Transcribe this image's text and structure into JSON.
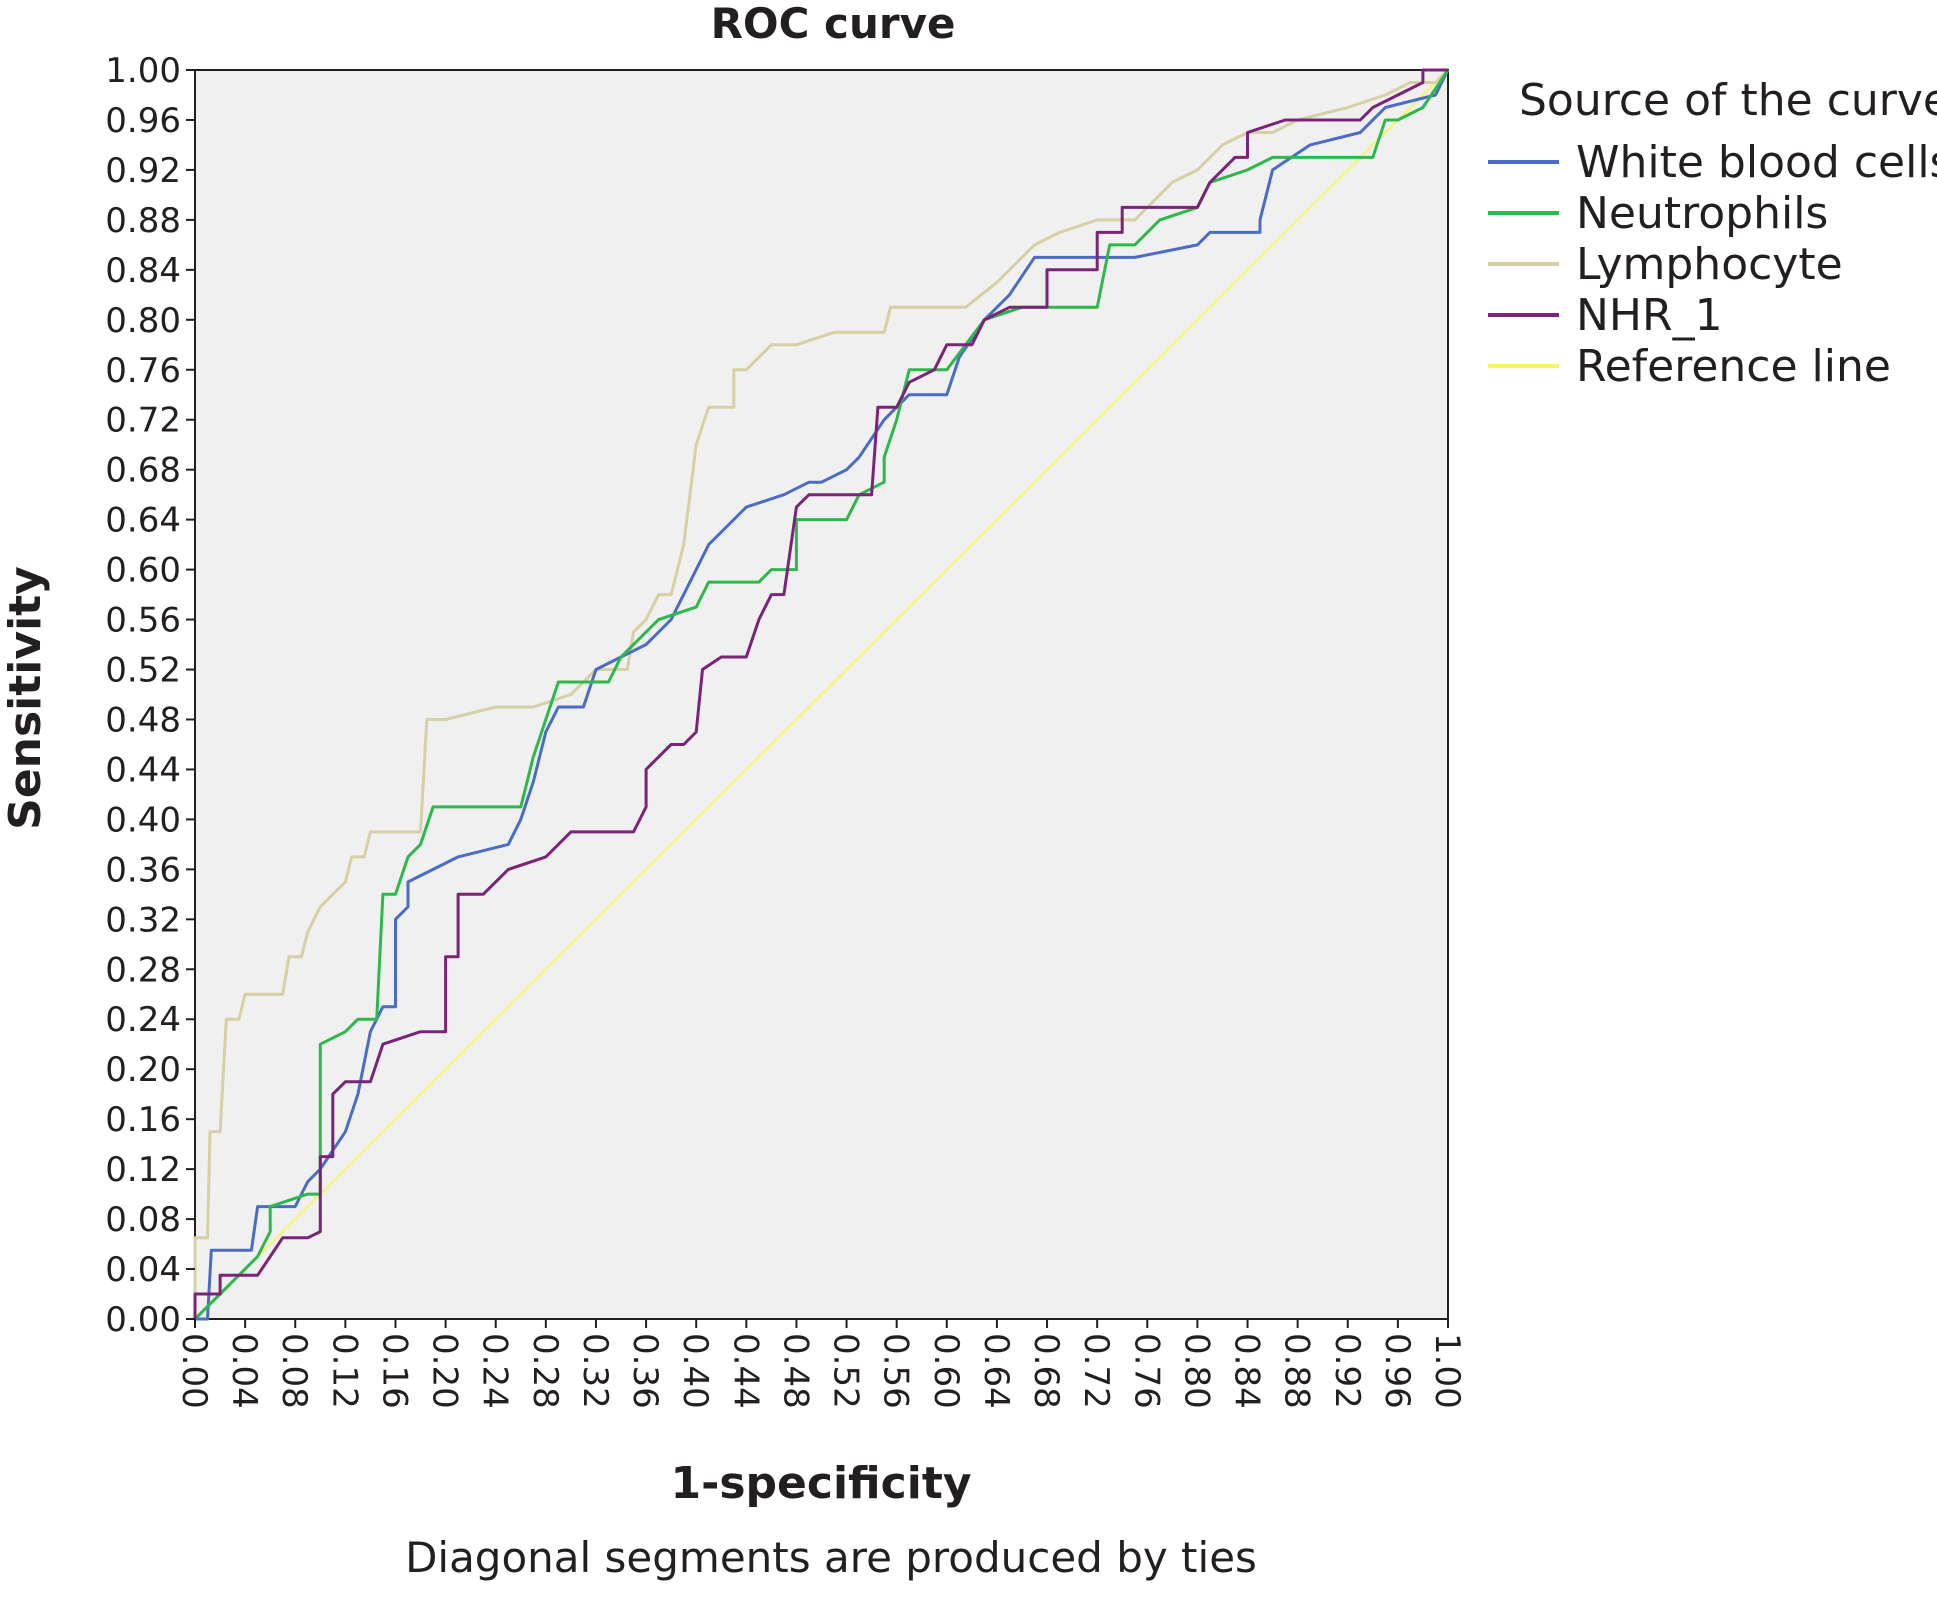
{
  "chart_data": {
    "type": "line",
    "title": "ROC curve",
    "xlabel": "1-specificity",
    "ylabel": "Sensitivity",
    "footnote": "Diagonal segments are produced by ties",
    "xlim": [
      0,
      1
    ],
    "ylim": [
      0,
      1
    ],
    "x_ticks": [
      "0.00",
      "0.04",
      "0.08",
      "0.12",
      "0.16",
      "0.20",
      "0.24",
      "0.28",
      "0.32",
      "0.36",
      "0.40",
      "0.44",
      "0.48",
      "0.52",
      "0.56",
      "0.60",
      "0.64",
      "0.68",
      "0.72",
      "0.76",
      "0.80",
      "0.84",
      "0.88",
      "0.92",
      "0.96",
      "1.00"
    ],
    "y_ticks": [
      "0.00",
      "0.04",
      "0.08",
      "0.12",
      "0.16",
      "0.20",
      "0.24",
      "0.28",
      "0.32",
      "0.36",
      "0.40",
      "0.44",
      "0.48",
      "0.52",
      "0.56",
      "0.60",
      "0.64",
      "0.68",
      "0.72",
      "0.76",
      "0.80",
      "0.84",
      "0.88",
      "0.92",
      "0.96",
      "1.00"
    ],
    "grid": false,
    "plot_background": "#f0f0f0",
    "legend": {
      "title": "Source of the curve",
      "placement": "right"
    },
    "series": [
      {
        "name": "White blood cells",
        "color": "#4a6cc4",
        "points": [
          [
            0,
            0
          ],
          [
            0.01,
            0
          ],
          [
            0.013,
            0.055
          ],
          [
            0.045,
            0.055
          ],
          [
            0.05,
            0.09
          ],
          [
            0.08,
            0.09
          ],
          [
            0.09,
            0.11
          ],
          [
            0.1,
            0.12
          ],
          [
            0.12,
            0.15
          ],
          [
            0.13,
            0.18
          ],
          [
            0.14,
            0.23
          ],
          [
            0.15,
            0.25
          ],
          [
            0.16,
            0.25
          ],
          [
            0.16,
            0.32
          ],
          [
            0.17,
            0.33
          ],
          [
            0.17,
            0.35
          ],
          [
            0.21,
            0.37
          ],
          [
            0.25,
            0.38
          ],
          [
            0.26,
            0.4
          ],
          [
            0.27,
            0.43
          ],
          [
            0.28,
            0.47
          ],
          [
            0.29,
            0.49
          ],
          [
            0.31,
            0.49
          ],
          [
            0.32,
            0.52
          ],
          [
            0.34,
            0.53
          ],
          [
            0.36,
            0.54
          ],
          [
            0.38,
            0.56
          ],
          [
            0.4,
            0.6
          ],
          [
            0.41,
            0.62
          ],
          [
            0.44,
            0.65
          ],
          [
            0.47,
            0.66
          ],
          [
            0.49,
            0.67
          ],
          [
            0.5,
            0.67
          ],
          [
            0.52,
            0.68
          ],
          [
            0.53,
            0.69
          ],
          [
            0.55,
            0.72
          ],
          [
            0.57,
            0.74
          ],
          [
            0.6,
            0.74
          ],
          [
            0.61,
            0.77
          ],
          [
            0.63,
            0.8
          ],
          [
            0.65,
            0.82
          ],
          [
            0.67,
            0.85
          ],
          [
            0.75,
            0.85
          ],
          [
            0.8,
            0.86
          ],
          [
            0.81,
            0.87
          ],
          [
            0.85,
            0.87
          ],
          [
            0.85,
            0.88
          ],
          [
            0.86,
            0.92
          ],
          [
            0.89,
            0.94
          ],
          [
            0.93,
            0.95
          ],
          [
            0.95,
            0.97
          ],
          [
            0.99,
            0.98
          ],
          [
            1,
            1
          ]
        ]
      },
      {
        "name": "Neutrophils",
        "color": "#2eb84c",
        "points": [
          [
            0,
            0
          ],
          [
            0.02,
            0.02
          ],
          [
            0.05,
            0.05
          ],
          [
            0.06,
            0.07
          ],
          [
            0.06,
            0.09
          ],
          [
            0.09,
            0.1
          ],
          [
            0.1,
            0.1
          ],
          [
            0.1,
            0.22
          ],
          [
            0.12,
            0.23
          ],
          [
            0.13,
            0.24
          ],
          [
            0.145,
            0.24
          ],
          [
            0.15,
            0.34
          ],
          [
            0.16,
            0.34
          ],
          [
            0.17,
            0.37
          ],
          [
            0.18,
            0.38
          ],
          [
            0.19,
            0.41
          ],
          [
            0.26,
            0.41
          ],
          [
            0.27,
            0.45
          ],
          [
            0.28,
            0.48
          ],
          [
            0.29,
            0.51
          ],
          [
            0.33,
            0.51
          ],
          [
            0.34,
            0.53
          ],
          [
            0.37,
            0.56
          ],
          [
            0.4,
            0.57
          ],
          [
            0.41,
            0.59
          ],
          [
            0.45,
            0.59
          ],
          [
            0.46,
            0.6
          ],
          [
            0.48,
            0.6
          ],
          [
            0.48,
            0.64
          ],
          [
            0.52,
            0.64
          ],
          [
            0.53,
            0.66
          ],
          [
            0.55,
            0.67
          ],
          [
            0.55,
            0.69
          ],
          [
            0.56,
            0.72
          ],
          [
            0.57,
            0.76
          ],
          [
            0.6,
            0.76
          ],
          [
            0.63,
            0.8
          ],
          [
            0.66,
            0.81
          ],
          [
            0.72,
            0.81
          ],
          [
            0.73,
            0.86
          ],
          [
            0.75,
            0.86
          ],
          [
            0.77,
            0.88
          ],
          [
            0.8,
            0.89
          ],
          [
            0.81,
            0.91
          ],
          [
            0.84,
            0.92
          ],
          [
            0.86,
            0.93
          ],
          [
            0.94,
            0.93
          ],
          [
            0.95,
            0.96
          ],
          [
            0.96,
            0.96
          ],
          [
            0.98,
            0.97
          ],
          [
            1,
            1
          ]
        ]
      },
      {
        "name": "Lymphocyte",
        "color": "#d6d0a4",
        "points": [
          [
            0,
            0
          ],
          [
            0,
            0.065
          ],
          [
            0.01,
            0.065
          ],
          [
            0.012,
            0.15
          ],
          [
            0.02,
            0.15
          ],
          [
            0.025,
            0.24
          ],
          [
            0.035,
            0.24
          ],
          [
            0.04,
            0.26
          ],
          [
            0.07,
            0.26
          ],
          [
            0.075,
            0.29
          ],
          [
            0.085,
            0.29
          ],
          [
            0.09,
            0.31
          ],
          [
            0.1,
            0.33
          ],
          [
            0.11,
            0.34
          ],
          [
            0.12,
            0.35
          ],
          [
            0.125,
            0.37
          ],
          [
            0.135,
            0.37
          ],
          [
            0.14,
            0.39
          ],
          [
            0.18,
            0.39
          ],
          [
            0.185,
            0.48
          ],
          [
            0.2,
            0.48
          ],
          [
            0.24,
            0.49
          ],
          [
            0.27,
            0.49
          ],
          [
            0.3,
            0.5
          ],
          [
            0.32,
            0.52
          ],
          [
            0.345,
            0.52
          ],
          [
            0.35,
            0.55
          ],
          [
            0.36,
            0.56
          ],
          [
            0.37,
            0.58
          ],
          [
            0.38,
            0.58
          ],
          [
            0.39,
            0.62
          ],
          [
            0.4,
            0.7
          ],
          [
            0.41,
            0.73
          ],
          [
            0.43,
            0.73
          ],
          [
            0.43,
            0.76
          ],
          [
            0.44,
            0.76
          ],
          [
            0.46,
            0.78
          ],
          [
            0.48,
            0.78
          ],
          [
            0.51,
            0.79
          ],
          [
            0.55,
            0.79
          ],
          [
            0.555,
            0.81
          ],
          [
            0.615,
            0.81
          ],
          [
            0.64,
            0.83
          ],
          [
            0.67,
            0.86
          ],
          [
            0.69,
            0.87
          ],
          [
            0.72,
            0.88
          ],
          [
            0.75,
            0.88
          ],
          [
            0.78,
            0.91
          ],
          [
            0.8,
            0.92
          ],
          [
            0.82,
            0.94
          ],
          [
            0.84,
            0.95
          ],
          [
            0.86,
            0.95
          ],
          [
            0.88,
            0.96
          ],
          [
            0.92,
            0.97
          ],
          [
            0.95,
            0.98
          ],
          [
            0.97,
            0.99
          ],
          [
            0.99,
            0.99
          ],
          [
            1,
            1
          ]
        ]
      },
      {
        "name": "NHR_1",
        "color": "#7a2478",
        "points": [
          [
            0,
            0
          ],
          [
            0,
            0.02
          ],
          [
            0.02,
            0.02
          ],
          [
            0.02,
            0.035
          ],
          [
            0.05,
            0.035
          ],
          [
            0.06,
            0.05
          ],
          [
            0.07,
            0.065
          ],
          [
            0.09,
            0.065
          ],
          [
            0.1,
            0.07
          ],
          [
            0.1,
            0.13
          ],
          [
            0.11,
            0.13
          ],
          [
            0.11,
            0.18
          ],
          [
            0.12,
            0.19
          ],
          [
            0.14,
            0.19
          ],
          [
            0.15,
            0.22
          ],
          [
            0.18,
            0.23
          ],
          [
            0.2,
            0.23
          ],
          [
            0.2,
            0.29
          ],
          [
            0.21,
            0.29
          ],
          [
            0.21,
            0.34
          ],
          [
            0.23,
            0.34
          ],
          [
            0.24,
            0.35
          ],
          [
            0.25,
            0.36
          ],
          [
            0.28,
            0.37
          ],
          [
            0.29,
            0.38
          ],
          [
            0.3,
            0.39
          ],
          [
            0.35,
            0.39
          ],
          [
            0.36,
            0.41
          ],
          [
            0.36,
            0.44
          ],
          [
            0.37,
            0.45
          ],
          [
            0.38,
            0.46
          ],
          [
            0.39,
            0.46
          ],
          [
            0.4,
            0.47
          ],
          [
            0.405,
            0.52
          ],
          [
            0.42,
            0.53
          ],
          [
            0.44,
            0.53
          ],
          [
            0.45,
            0.56
          ],
          [
            0.46,
            0.58
          ],
          [
            0.47,
            0.58
          ],
          [
            0.48,
            0.65
          ],
          [
            0.49,
            0.66
          ],
          [
            0.54,
            0.66
          ],
          [
            0.545,
            0.73
          ],
          [
            0.56,
            0.73
          ],
          [
            0.57,
            0.75
          ],
          [
            0.59,
            0.76
          ],
          [
            0.6,
            0.78
          ],
          [
            0.62,
            0.78
          ],
          [
            0.63,
            0.8
          ],
          [
            0.65,
            0.81
          ],
          [
            0.68,
            0.81
          ],
          [
            0.68,
            0.84
          ],
          [
            0.72,
            0.84
          ],
          [
            0.72,
            0.87
          ],
          [
            0.74,
            0.87
          ],
          [
            0.74,
            0.89
          ],
          [
            0.8,
            0.89
          ],
          [
            0.81,
            0.91
          ],
          [
            0.83,
            0.93
          ],
          [
            0.84,
            0.93
          ],
          [
            0.84,
            0.95
          ],
          [
            0.87,
            0.96
          ],
          [
            0.93,
            0.96
          ],
          [
            0.94,
            0.97
          ],
          [
            0.96,
            0.98
          ],
          [
            0.98,
            0.99
          ],
          [
            0.98,
            1
          ],
          [
            1,
            1
          ]
        ]
      },
      {
        "name": "Reference line",
        "color": "#f5f56a",
        "points": [
          [
            0,
            0
          ],
          [
            1,
            1
          ]
        ]
      }
    ]
  }
}
